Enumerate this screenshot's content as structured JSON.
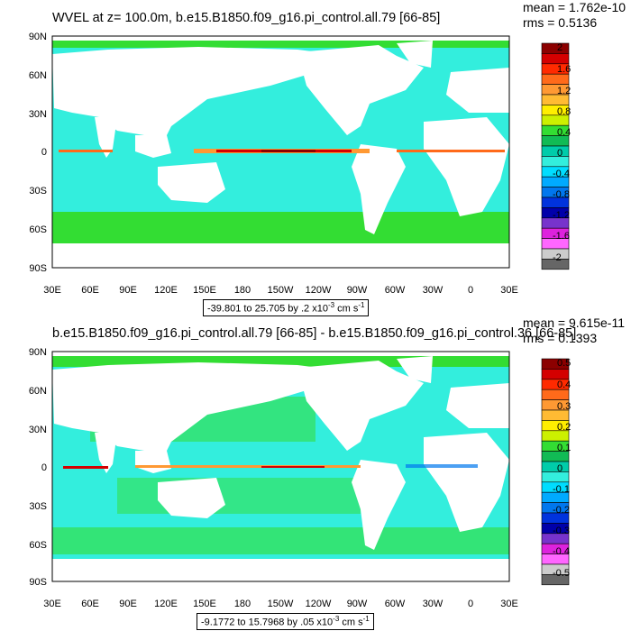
{
  "panels": [
    {
      "title": "WVEL at z= 100.0m, b.e15.B1850.f09_g16.pi_control.all.79 [66-85]",
      "mean": "mean = 1.762e-10",
      "rms": "rms = 0.5136",
      "range_text": "-39.801 to 25.705 by .2 x10",
      "range_exp": "-3",
      "range_unit": " cm s",
      "range_unit_exp": "-1",
      "colorbar_labels": [
        "2",
        "1.6",
        "1.2",
        "0.8",
        "0.4",
        "0",
        "-0.4",
        "-0.8",
        "-1.2",
        "-1.6",
        "-2"
      ]
    },
    {
      "title": "b.e15.B1850.f09_g16.pi_control.all.79 [66-85] - b.e15.B1850.f09_g16.pi_control.36 [66-85]",
      "mean": "mean = 9.615e-11",
      "rms": "rms = 0.1393",
      "range_text": "-9.1772 to 15.7968 by .05 x10",
      "range_exp": "-3",
      "range_unit": " cm s",
      "range_unit_exp": "-1",
      "colorbar_labels": [
        "0.5",
        "0.4",
        "0.3",
        "0.2",
        "0.1",
        "0",
        "-0.1",
        "-0.2",
        "-0.3",
        "-0.4",
        "-0.5"
      ]
    }
  ],
  "lat_labels": [
    "90N",
    "60N",
    "30N",
    "0",
    "30S",
    "60S",
    "90S"
  ],
  "lon_labels": [
    "30E",
    "60E",
    "90E",
    "120E",
    "150E",
    "180",
    "150W",
    "120W",
    "90W",
    "60W",
    "30W",
    "0",
    "30E"
  ],
  "colorbar_colors": [
    "#8c0000",
    "#d40000",
    "#ff2a00",
    "#ff6a1a",
    "#ff9933",
    "#ffbb33",
    "#ffee00",
    "#ccf000",
    "#33dd33",
    "#11bb55",
    "#00ccaa",
    "#33eedd",
    "#00ddff",
    "#00aaff",
    "#0077ee",
    "#0033dd",
    "#0000aa",
    "#7733cc",
    "#dd22dd",
    "#ff66ff",
    "#cccccc",
    "#666666"
  ],
  "colors": {
    "ocean": "#33eedd",
    "ocean_variation": "#33dd33",
    "land": "#ffffff",
    "equator_high": "#8c0000"
  }
}
